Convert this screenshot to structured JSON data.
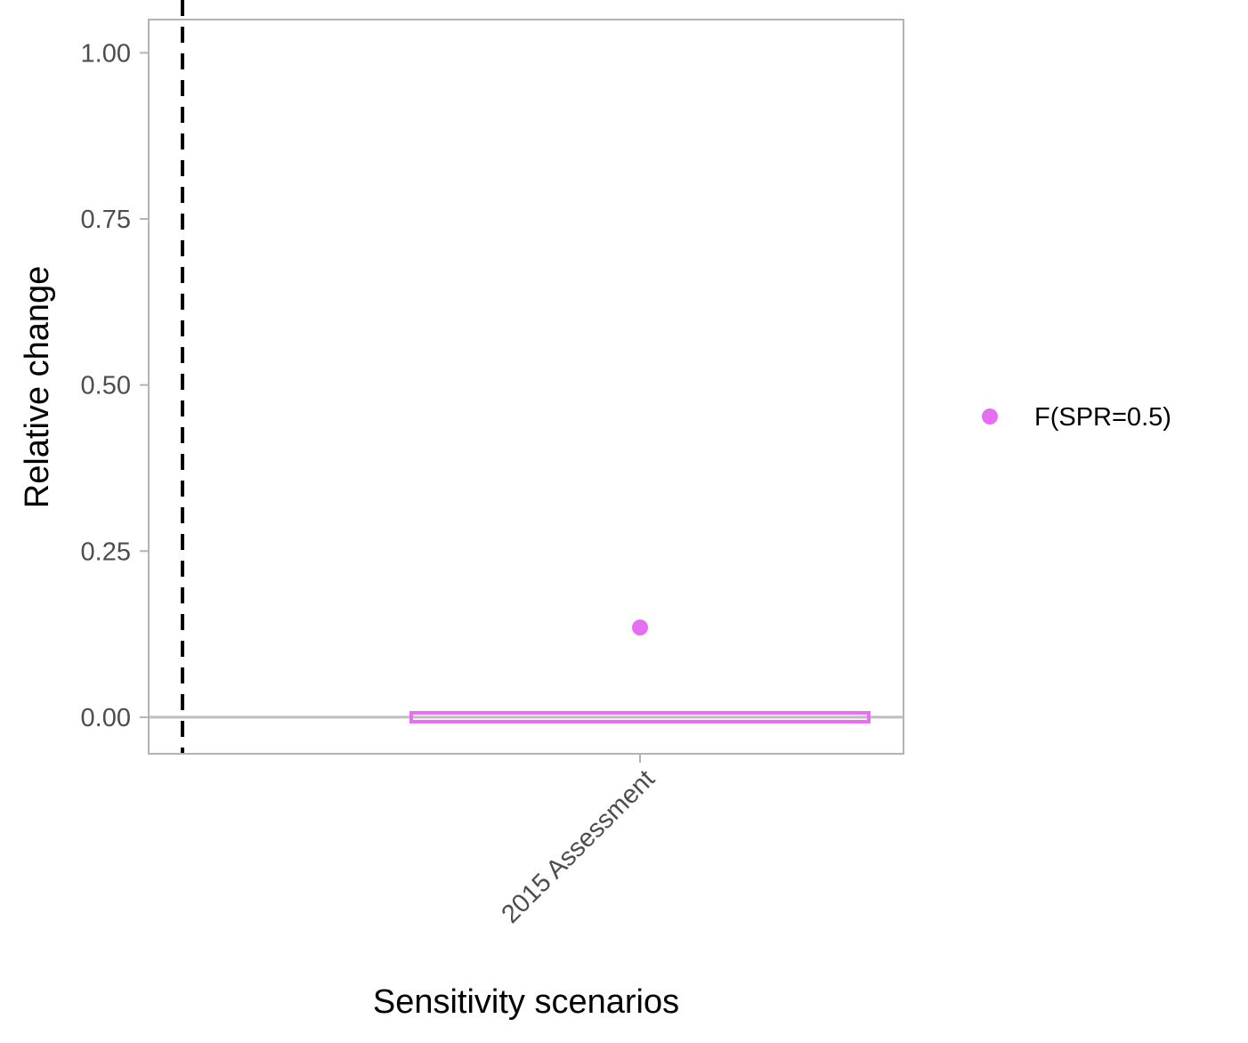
{
  "chart_data": {
    "type": "scatter",
    "title": "",
    "xlabel": "Sensitivity scenarios",
    "ylabel": "Relative change",
    "categories": [
      "2015 Assessment"
    ],
    "ylim": [
      -0.055,
      1.05
    ],
    "yticks": [
      0,
      0.25,
      0.5,
      0.75,
      1
    ],
    "ytick_labels": [
      "0.00",
      "0.25",
      "0.50",
      "0.75",
      "1.00"
    ],
    "x_tick_rotation": 45,
    "grid": false,
    "reference_lines": [
      {
        "axis": "y",
        "value": 0,
        "style": "solid",
        "color": "#bebebe"
      },
      {
        "axis": "x",
        "position": "left of first category",
        "style": "dashed",
        "color": "#000000"
      }
    ],
    "series": [
      {
        "name": "F(SPR=0.5)",
        "color": "#e66ef0",
        "points": [
          {
            "category": "2015 Assessment",
            "value": 0.135
          }
        ],
        "interval": {
          "category": "2015 Assessment",
          "low": 0.0,
          "high": 0.0
        }
      }
    ],
    "legend": {
      "placement": "right",
      "entries": [
        "F(SPR=0.5)"
      ]
    }
  }
}
